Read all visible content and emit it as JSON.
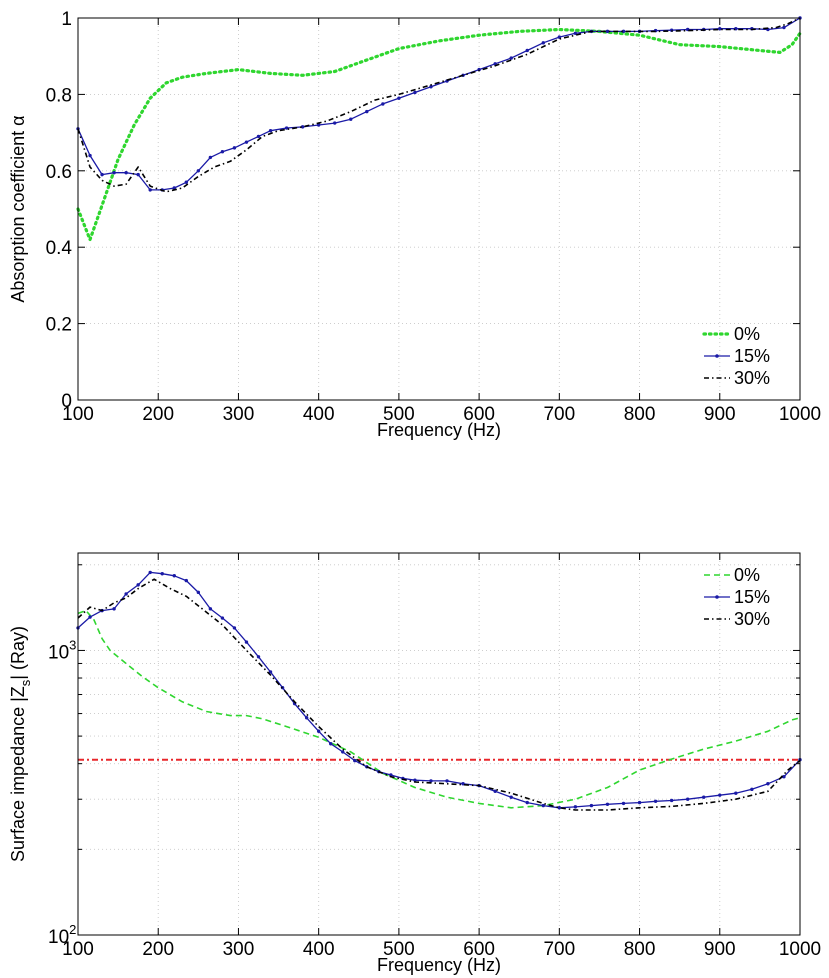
{
  "chart_data": [
    {
      "type": "line",
      "title": "",
      "xlabel": "Frequency (Hz)",
      "ylabel": "Absorption coefficient α",
      "xlim": [
        100,
        1000
      ],
      "ylim": [
        0,
        1
      ],
      "xscale": "linear",
      "yscale": "linear",
      "grid": true,
      "x_ticks": [
        "100",
        "200",
        "300",
        "400",
        "500",
        "600",
        "700",
        "800",
        "900",
        "1000"
      ],
      "y_ticks": [
        "0",
        "0.2",
        "0.4",
        "0.6",
        "0.8",
        "1"
      ],
      "legend": "bottom-right",
      "series": [
        {
          "name": "0%",
          "color": "#2fd62f",
          "style": "dotted",
          "x": [
            100,
            115,
            130,
            150,
            170,
            190,
            210,
            230,
            260,
            300,
            340,
            380,
            420,
            460,
            500,
            550,
            600,
            650,
            700,
            750,
            800,
            850,
            900,
            950,
            975,
            990,
            1000
          ],
          "y": [
            0.5,
            0.42,
            0.51,
            0.63,
            0.72,
            0.79,
            0.83,
            0.845,
            0.855,
            0.865,
            0.855,
            0.85,
            0.86,
            0.89,
            0.92,
            0.94,
            0.955,
            0.965,
            0.97,
            0.965,
            0.955,
            0.93,
            0.925,
            0.915,
            0.91,
            0.93,
            0.96
          ]
        },
        {
          "name": "15%",
          "color": "#1a1aa6",
          "style": "solid-marker",
          "x": [
            100,
            115,
            130,
            145,
            160,
            175,
            190,
            205,
            220,
            235,
            250,
            265,
            280,
            295,
            310,
            325,
            340,
            360,
            380,
            400,
            420,
            440,
            460,
            480,
            500,
            520,
            540,
            560,
            580,
            600,
            620,
            640,
            660,
            680,
            700,
            720,
            740,
            760,
            780,
            800,
            820,
            840,
            860,
            880,
            900,
            920,
            940,
            960,
            980,
            1000
          ],
          "y": [
            0.71,
            0.64,
            0.59,
            0.595,
            0.595,
            0.59,
            0.55,
            0.55,
            0.555,
            0.57,
            0.6,
            0.635,
            0.65,
            0.66,
            0.675,
            0.69,
            0.705,
            0.712,
            0.715,
            0.72,
            0.725,
            0.735,
            0.755,
            0.775,
            0.79,
            0.805,
            0.82,
            0.835,
            0.85,
            0.865,
            0.88,
            0.895,
            0.915,
            0.935,
            0.95,
            0.96,
            0.965,
            0.965,
            0.965,
            0.965,
            0.967,
            0.968,
            0.97,
            0.97,
            0.972,
            0.972,
            0.972,
            0.97,
            0.975,
            1.0
          ]
        },
        {
          "name": "30%",
          "color": "#000000",
          "style": "dash-dot",
          "x": [
            100,
            115,
            130,
            145,
            160,
            175,
            190,
            210,
            230,
            250,
            270,
            290,
            310,
            330,
            350,
            380,
            410,
            440,
            470,
            500,
            540,
            580,
            620,
            660,
            700,
            740,
            780,
            820,
            860,
            900,
            940,
            970,
            985,
            1000
          ],
          "y": [
            0.71,
            0.61,
            0.575,
            0.56,
            0.565,
            0.61,
            0.56,
            0.545,
            0.555,
            0.585,
            0.61,
            0.625,
            0.655,
            0.69,
            0.705,
            0.715,
            0.73,
            0.755,
            0.785,
            0.8,
            0.825,
            0.85,
            0.875,
            0.905,
            0.945,
            0.965,
            0.965,
            0.965,
            0.967,
            0.97,
            0.97,
            0.975,
            0.985,
            1.0
          ]
        }
      ]
    },
    {
      "type": "line",
      "title": "",
      "xlabel": "Frequency (Hz)",
      "ylabel": "Surface impedance |Z_s| (Ray)",
      "ylabel_parts": {
        "main": "Surface impedance |Z",
        "sub": "s",
        "tail": "| (Ray)"
      },
      "xlim": [
        100,
        1000
      ],
      "ylim": [
        100,
        2200
      ],
      "xscale": "linear",
      "yscale": "log",
      "grid": true,
      "x_ticks": [
        "100",
        "200",
        "300",
        "400",
        "500",
        "600",
        "700",
        "800",
        "900",
        "1000"
      ],
      "y_ticks": [
        {
          "value": 100,
          "base": "10",
          "exp": "2"
        },
        {
          "value": 1000,
          "base": "10",
          "exp": "3"
        }
      ],
      "legend": "top-right",
      "reference_line": {
        "y": 413,
        "color": "#e8262a",
        "style": "dash-dot"
      },
      "series": [
        {
          "name": "0%",
          "color": "#2fd62f",
          "style": "dashed",
          "x": [
            100,
            110,
            120,
            130,
            140,
            160,
            180,
            200,
            230,
            260,
            290,
            310,
            330,
            360,
            400,
            440,
            480,
            520,
            560,
            600,
            640,
            680,
            720,
            760,
            800,
            840,
            880,
            920,
            960,
            990,
            1000
          ],
          "y": [
            1350,
            1380,
            1280,
            1100,
            1000,
            900,
            810,
            740,
            660,
            610,
            590,
            590,
            575,
            540,
            495,
            440,
            370,
            330,
            305,
            290,
            280,
            285,
            300,
            330,
            380,
            415,
            450,
            480,
            520,
            570,
            580
          ]
        },
        {
          "name": "15%",
          "color": "#1a1aa6",
          "style": "solid-marker",
          "x": [
            100,
            115,
            130,
            145,
            160,
            175,
            190,
            205,
            220,
            235,
            250,
            265,
            280,
            295,
            310,
            325,
            340,
            355,
            370,
            385,
            400,
            415,
            430,
            445,
            460,
            475,
            490,
            505,
            520,
            540,
            560,
            580,
            600,
            620,
            640,
            660,
            680,
            700,
            720,
            740,
            760,
            780,
            800,
            820,
            840,
            860,
            880,
            900,
            920,
            940,
            960,
            980,
            1000
          ],
          "y": [
            1200,
            1310,
            1380,
            1400,
            1580,
            1700,
            1880,
            1860,
            1830,
            1760,
            1600,
            1400,
            1300,
            1200,
            1070,
            950,
            840,
            740,
            650,
            580,
            520,
            470,
            440,
            410,
            390,
            375,
            365,
            355,
            350,
            348,
            348,
            340,
            335,
            320,
            305,
            292,
            285,
            280,
            282,
            285,
            288,
            290,
            292,
            295,
            297,
            300,
            305,
            310,
            315,
            325,
            340,
            360,
            413
          ]
        },
        {
          "name": "30%",
          "color": "#000000",
          "style": "dash-dot",
          "x": [
            100,
            115,
            130,
            145,
            160,
            175,
            195,
            215,
            235,
            255,
            280,
            310,
            340,
            370,
            400,
            430,
            460,
            490,
            520,
            560,
            600,
            640,
            680,
            700,
            720,
            760,
            800,
            840,
            880,
            920,
            960,
            985,
            1000
          ],
          "y": [
            1300,
            1420,
            1380,
            1470,
            1530,
            1650,
            1780,
            1650,
            1550,
            1400,
            1230,
            1000,
            820,
            660,
            540,
            450,
            390,
            360,
            345,
            340,
            335,
            315,
            290,
            280,
            275,
            275,
            280,
            283,
            290,
            300,
            320,
            380,
            410
          ]
        }
      ]
    }
  ]
}
